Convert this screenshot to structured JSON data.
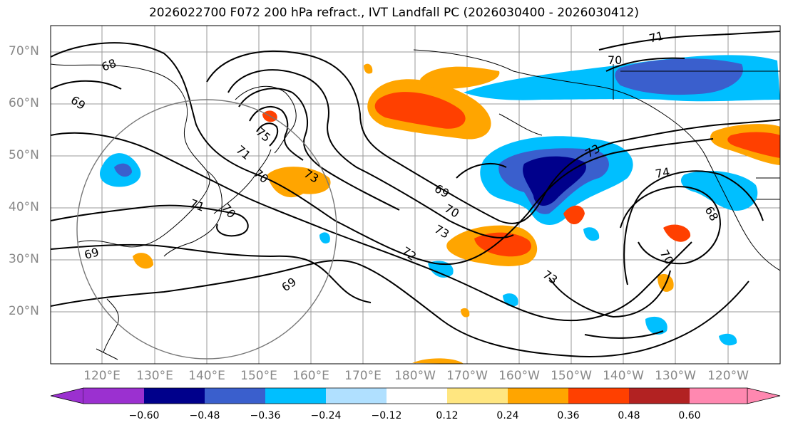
{
  "title": "2026022700 F072 200 hPa refract., IVT Landfall PC (2026030400 - 2026030412)",
  "lat_labels": [
    "70°N",
    "60°N",
    "50°N",
    "40°N",
    "30°N",
    "20°N"
  ],
  "lon_labels": [
    "120°E",
    "130°E",
    "140°E",
    "150°E",
    "160°E",
    "170°E",
    "180°W",
    "170°W",
    "160°W",
    "150°W",
    "140°W",
    "130°W",
    "120°W"
  ],
  "contour_labels": [
    "68",
    "69",
    "69",
    "75",
    "71",
    "70",
    "73",
    "71",
    "70",
    "69",
    "69",
    "70",
    "73",
    "72",
    "73",
    "73",
    "74",
    "68",
    "70",
    "71",
    "70"
  ],
  "colorbar": {
    "ticks": [
      "−0.60",
      "−0.48",
      "−0.36",
      "−0.24",
      "−0.12",
      "0.12",
      "0.24",
      "0.36",
      "0.48",
      "0.60"
    ],
    "colors": [
      "#9b30d0",
      "#00008b",
      "#3a5fcd",
      "#00bfff",
      "#b0e0ff",
      "#ffffff",
      "#ffe680",
      "#ffa500",
      "#ff4000",
      "#b22222",
      "#ff88b0"
    ]
  }
}
